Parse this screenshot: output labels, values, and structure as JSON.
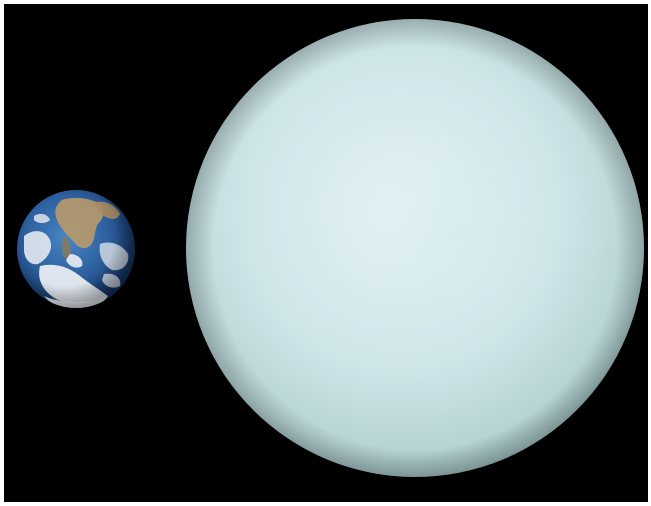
{
  "image": {
    "background_color": "#000000",
    "border_color": "#ffffff",
    "objects": [
      {
        "name": "earth",
        "icon": "earth-planet",
        "colors": {
          "ocean": "#2c5f9e",
          "ocean_dark": "#0f2a55",
          "land": "#b89a6a",
          "cloud": "#f2f4f6"
        }
      },
      {
        "name": "uranus",
        "icon": "uranus-planet",
        "colors": {
          "highlight": "#e3f2f6",
          "body": "#c7e0e2",
          "limb": "#8fb0b0"
        }
      }
    ]
  }
}
